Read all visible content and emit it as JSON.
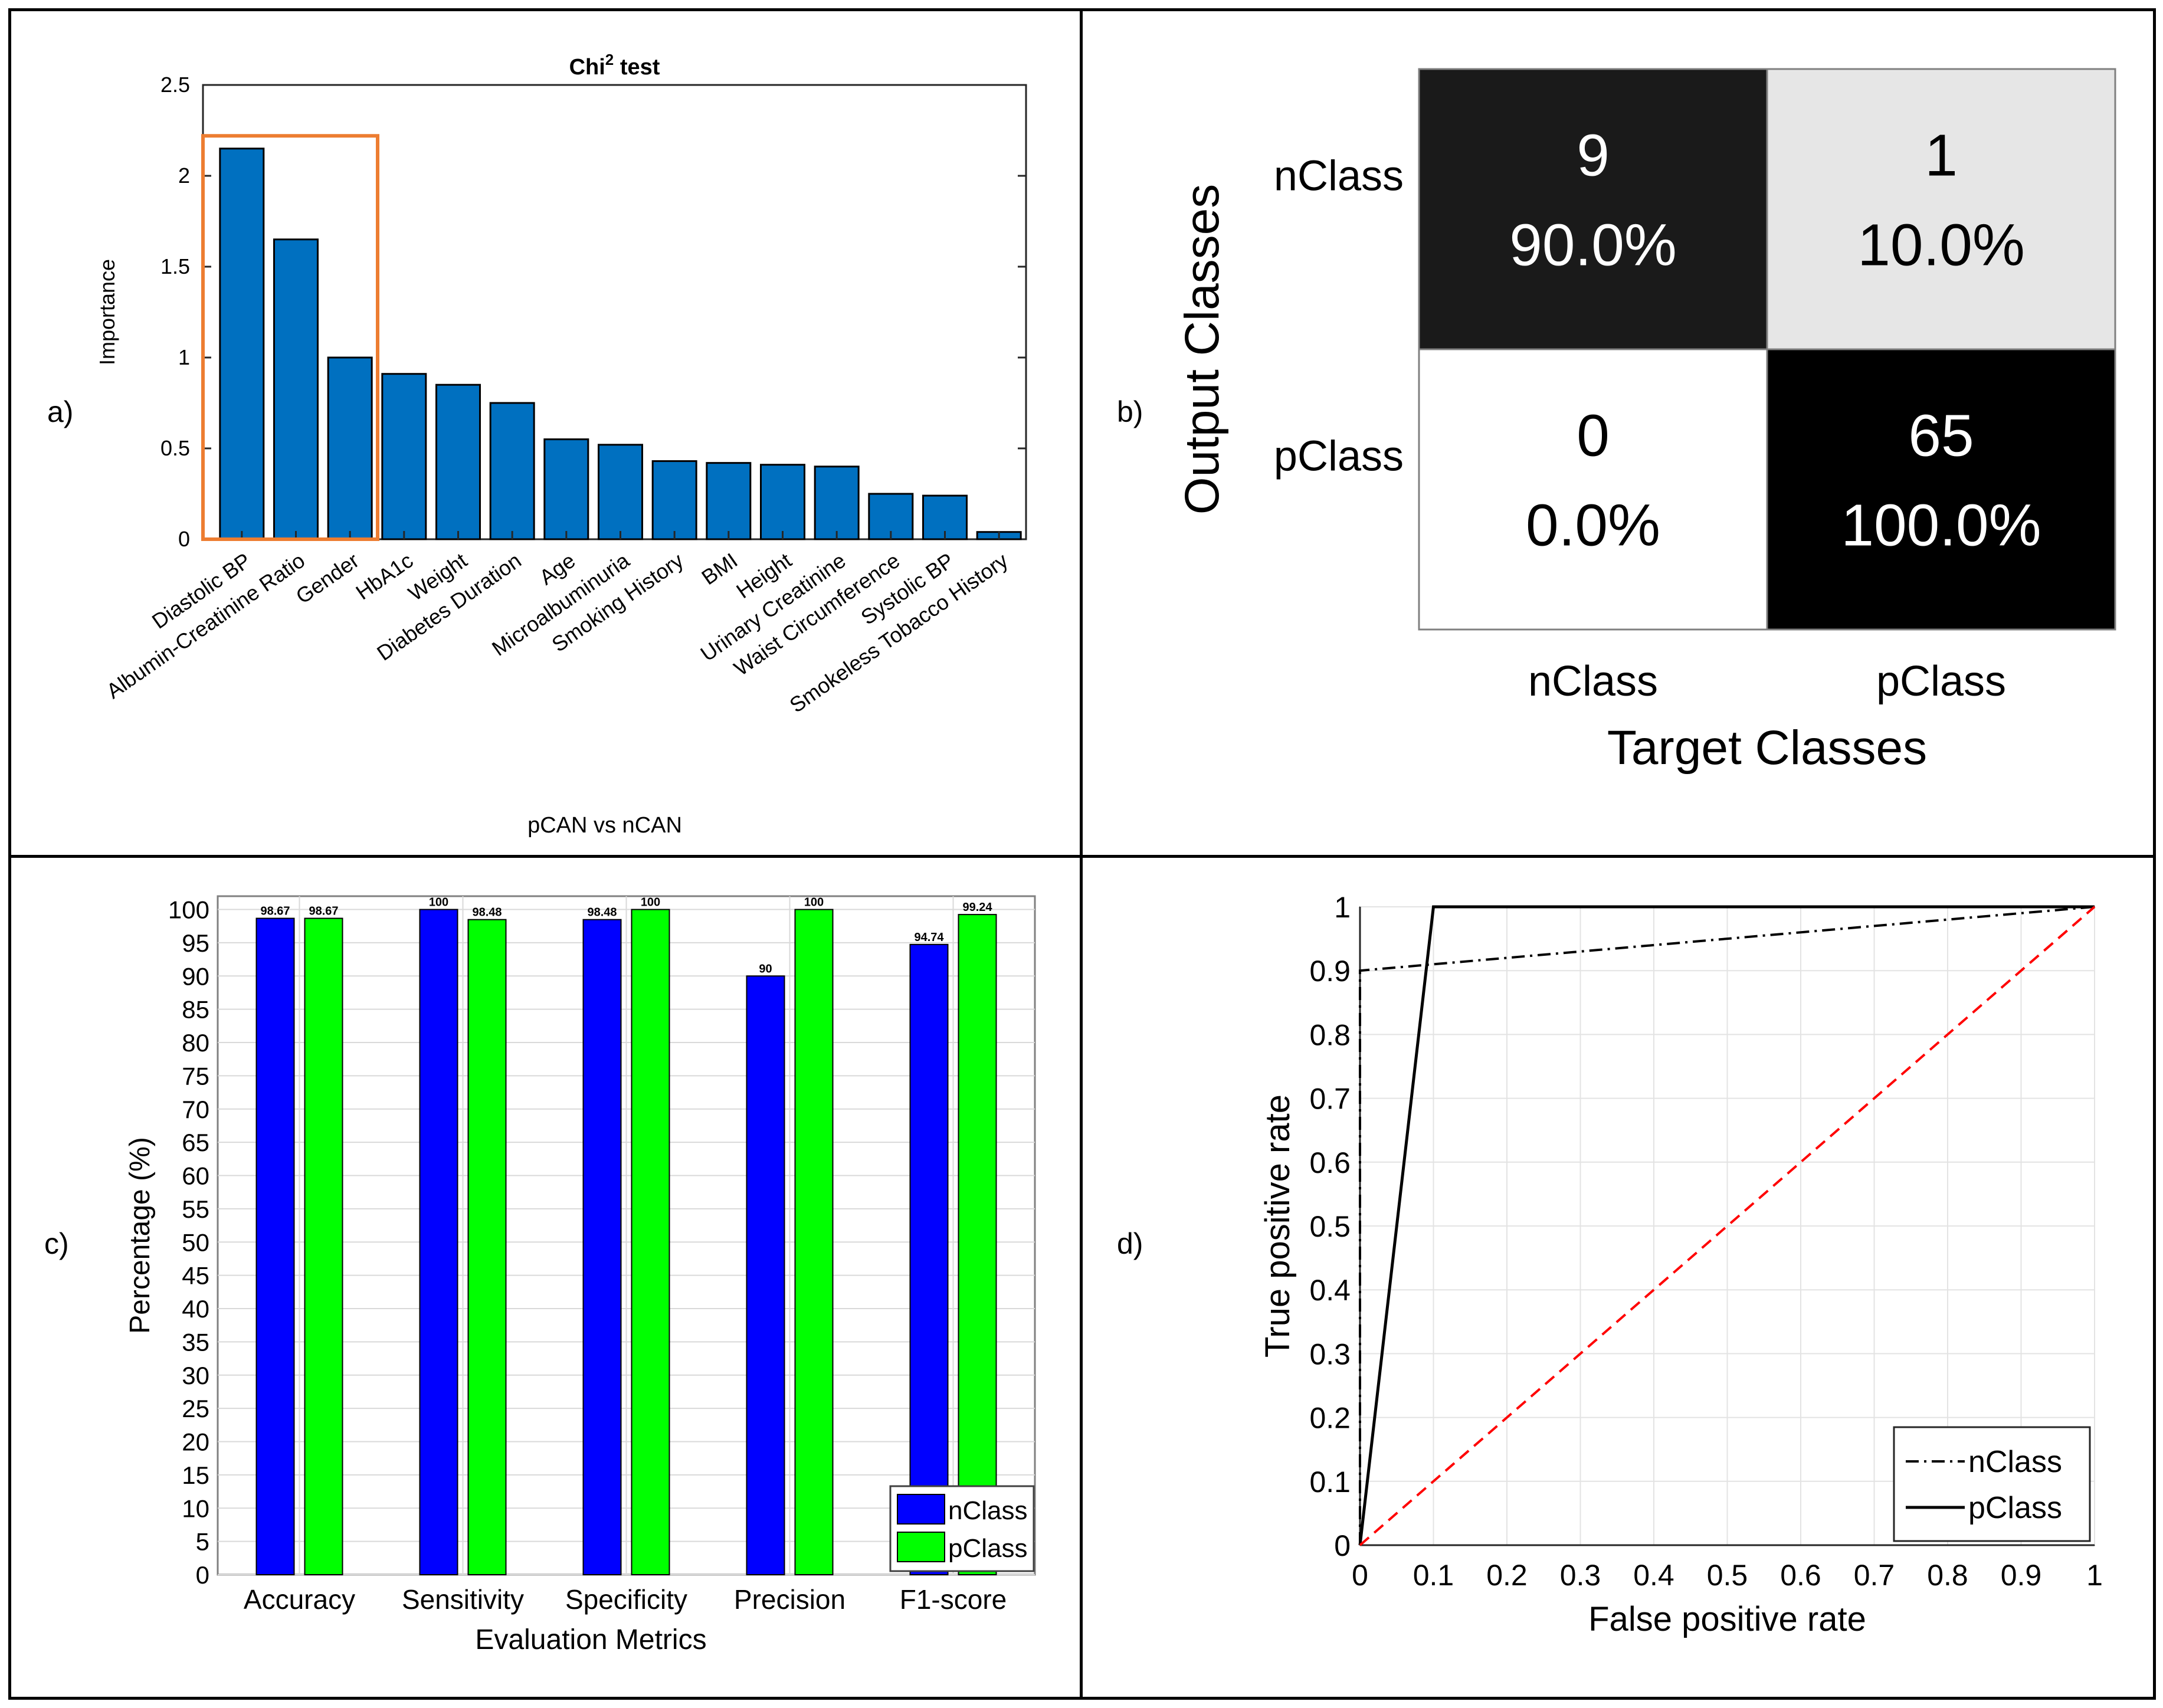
{
  "colors": {
    "bar_blue_a": "#0070c0",
    "highlight_orange": "#ed7d31",
    "n_class_blue": "#0000ff",
    "p_class_green": "#00ff00",
    "cm_dark": "#1a1a1a",
    "cm_light": "#e6e6e6",
    "cm_white": "#ffffff",
    "cm_black": "#000000",
    "diagonal_red": "#ff0000"
  },
  "panels": {
    "a": {
      "label": "a)"
    },
    "b": {
      "label": "b)"
    },
    "c": {
      "label": "c)"
    },
    "d": {
      "label": "d)"
    }
  },
  "chart_data": [
    {
      "id": "a",
      "type": "bar",
      "title": "Chi",
      "title_sup": "2",
      "title_suffix": " test",
      "xlabel": "pCAN vs nCAN",
      "ylabel": "Importance",
      "ylim": [
        0,
        2.5
      ],
      "yticks": [
        "0",
        "0.5",
        "1",
        "1.5",
        "2",
        "2.5"
      ],
      "ytick_values": [
        0,
        0.5,
        1,
        1.5,
        2,
        2.5
      ],
      "categories": [
        "Diastolic BP",
        "Albumin-Creatinine Ratio",
        "Gender",
        "HbA1c",
        "Weight",
        "Diabetes Duration",
        "Age",
        "Microalbuminuria",
        "Smoking History",
        "BMI",
        "Height",
        "Urinary Creatinine",
        "Waist Circumference",
        "Systolic BP",
        "Smokeless Tobacco History"
      ],
      "values": [
        2.15,
        1.65,
        1.0,
        0.91,
        0.85,
        0.75,
        0.55,
        0.52,
        0.43,
        0.42,
        0.41,
        0.4,
        0.25,
        0.24,
        0.04
      ],
      "highlighted_count": 3
    },
    {
      "id": "b",
      "type": "heatmap",
      "xlabel": "Target Classes",
      "ylabel": "Output Classes",
      "row_labels": [
        "nClass",
        "pClass"
      ],
      "col_labels": [
        "nClass",
        "pClass"
      ],
      "cells": [
        [
          {
            "count": "9",
            "pct": "90.0%",
            "shade": "dark"
          },
          {
            "count": "1",
            "pct": "10.0%",
            "shade": "light"
          }
        ],
        [
          {
            "count": "0",
            "pct": "0.0%",
            "shade": "white"
          },
          {
            "count": "65",
            "pct": "100.0%",
            "shade": "black"
          }
        ]
      ]
    },
    {
      "id": "c",
      "type": "bar",
      "xlabel": "Evaluation Metrics",
      "ylabel": "Percentage (%)",
      "ylim": [
        0,
        102
      ],
      "ytick_values": [
        0,
        5,
        10,
        15,
        20,
        25,
        30,
        35,
        40,
        45,
        50,
        55,
        60,
        65,
        70,
        75,
        80,
        85,
        90,
        95,
        100
      ],
      "yticks": [
        "0",
        "5",
        "10",
        "15",
        "20",
        "25",
        "30",
        "35",
        "40",
        "45",
        "50",
        "55",
        "60",
        "65",
        "70",
        "75",
        "80",
        "85",
        "90",
        "95",
        "100"
      ],
      "categories": [
        "Accuracy",
        "Sensitivity",
        "Specificity",
        "Precision",
        "F1-score"
      ],
      "series": [
        {
          "name": "nClass",
          "values": [
            98.67,
            100,
            98.48,
            90,
            94.74
          ],
          "labels": [
            "98.67",
            "100",
            "98.48",
            "90",
            "94.74"
          ]
        },
        {
          "name": "pClass",
          "values": [
            98.67,
            98.48,
            100,
            100,
            99.24
          ],
          "labels": [
            "98.67",
            "98.48",
            "100",
            "100",
            "99.24"
          ]
        }
      ],
      "legend": "bottom-right",
      "grid": true
    },
    {
      "id": "d",
      "type": "line",
      "xlabel": "False positive rate",
      "ylabel": "True positive rate",
      "xlim": [
        0,
        1
      ],
      "ylim": [
        0,
        1
      ],
      "xticks": [
        "0",
        "0.1",
        "0.2",
        "0.3",
        "0.4",
        "0.5",
        "0.6",
        "0.7",
        "0.8",
        "0.9",
        "1"
      ],
      "yticks": [
        "0",
        "0.1",
        "0.2",
        "0.3",
        "0.4",
        "0.5",
        "0.6",
        "0.7",
        "0.8",
        "0.9",
        "1"
      ],
      "tick_values": [
        0,
        0.1,
        0.2,
        0.3,
        0.4,
        0.5,
        0.6,
        0.7,
        0.8,
        0.9,
        1
      ],
      "series": [
        {
          "name": "nClass",
          "style": "dashdot",
          "x": [
            0,
            0,
            1
          ],
          "y": [
            0,
            0.9,
            1
          ]
        },
        {
          "name": "pClass",
          "style": "solid",
          "x": [
            0,
            0.1,
            1
          ],
          "y": [
            0,
            1,
            1
          ]
        },
        {
          "name": "",
          "style": "dashed-red",
          "x": [
            0,
            1
          ],
          "y": [
            0,
            1
          ]
        }
      ],
      "legend": "bottom-right",
      "grid": true
    }
  ]
}
